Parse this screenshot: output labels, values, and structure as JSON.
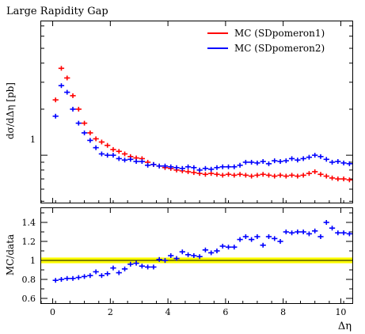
{
  "chart_data": [
    {
      "type": "scatter",
      "title": "Large Rapidity Gap",
      "ylabel": "dσ/dΔη [pb]",
      "xlabel": "",
      "log_y": true,
      "xlim": [
        -0.4,
        10.4
      ],
      "ylim": [
        0.49,
        7.5
      ],
      "ytick_labels": [
        "1"
      ],
      "ytick_values": [
        1
      ],
      "legend_position": "top-right",
      "x": [
        0.1,
        0.3,
        0.5,
        0.7,
        0.9,
        1.1,
        1.3,
        1.5,
        1.7,
        1.9,
        2.1,
        2.3,
        2.5,
        2.7,
        2.9,
        3.1,
        3.3,
        3.5,
        3.7,
        3.9,
        4.1,
        4.3,
        4.5,
        4.7,
        4.9,
        5.1,
        5.3,
        5.5,
        5.7,
        5.9,
        6.1,
        6.3,
        6.5,
        6.7,
        6.9,
        7.1,
        7.3,
        7.5,
        7.7,
        7.9,
        8.1,
        8.3,
        8.5,
        8.7,
        8.9,
        9.1,
        9.3,
        9.5,
        9.7,
        9.9,
        10.1,
        10.3
      ],
      "series": [
        {
          "name": "MC (SDpomeron1)",
          "color": "#ff0000",
          "values": [
            2.3,
            3.7,
            3.2,
            2.45,
            2.0,
            1.62,
            1.4,
            1.28,
            1.22,
            1.16,
            1.09,
            1.06,
            1.02,
            0.98,
            0.96,
            0.95,
            0.9,
            0.87,
            0.85,
            0.83,
            0.82,
            0.8,
            0.79,
            0.78,
            0.77,
            0.76,
            0.75,
            0.76,
            0.75,
            0.74,
            0.75,
            0.74,
            0.75,
            0.74,
            0.73,
            0.74,
            0.75,
            0.74,
            0.73,
            0.74,
            0.73,
            0.74,
            0.73,
            0.74,
            0.76,
            0.78,
            0.75,
            0.73,
            0.71,
            0.7,
            0.7,
            0.69
          ]
        },
        {
          "name": "MC (SDpomeron2)",
          "color": "#0000ff",
          "values": [
            1.8,
            2.85,
            2.58,
            2.0,
            1.62,
            1.4,
            1.25,
            1.12,
            1.02,
            1.0,
            1.0,
            0.95,
            0.93,
            0.94,
            0.91,
            0.91,
            0.86,
            0.87,
            0.85,
            0.85,
            0.84,
            0.83,
            0.82,
            0.84,
            0.83,
            0.8,
            0.82,
            0.81,
            0.83,
            0.84,
            0.84,
            0.84,
            0.86,
            0.9,
            0.9,
            0.89,
            0.91,
            0.88,
            0.92,
            0.91,
            0.92,
            0.95,
            0.93,
            0.95,
            0.97,
            1.0,
            0.98,
            0.94,
            0.9,
            0.91,
            0.89,
            0.88
          ]
        }
      ]
    },
    {
      "type": "scatter",
      "title": "",
      "ylabel": "MC/data",
      "xlabel": "Δη",
      "xlim": [
        -0.4,
        10.4
      ],
      "ylim": [
        0.55,
        1.55
      ],
      "ytick_labels": [
        "0.6",
        "0.8",
        "1",
        "1.2",
        "1.4"
      ],
      "ytick_values": [
        0.6,
        0.8,
        1.0,
        1.2,
        1.4
      ],
      "xtick_labels": [
        "0",
        "2",
        "4",
        "6",
        "8",
        "10"
      ],
      "xtick_values": [
        0,
        2,
        4,
        6,
        8,
        10
      ],
      "reference_line": 1.0,
      "band": [
        0.97,
        1.03
      ],
      "band_color": "#ffff00",
      "x": [
        0.1,
        0.3,
        0.5,
        0.7,
        0.9,
        1.1,
        1.3,
        1.5,
        1.7,
        1.9,
        2.1,
        2.3,
        2.5,
        2.7,
        2.9,
        3.1,
        3.3,
        3.5,
        3.7,
        3.9,
        4.1,
        4.3,
        4.5,
        4.7,
        4.9,
        5.1,
        5.3,
        5.5,
        5.7,
        5.9,
        6.1,
        6.3,
        6.5,
        6.7,
        6.9,
        7.1,
        7.3,
        7.5,
        7.7,
        7.9,
        8.1,
        8.3,
        8.5,
        8.7,
        8.9,
        9.1,
        9.3,
        9.5,
        9.7,
        9.9,
        10.1,
        10.3
      ],
      "series": [
        {
          "name": "MC (SDpomeron2)",
          "color": "#0000ff",
          "values": [
            0.79,
            0.8,
            0.81,
            0.81,
            0.82,
            0.83,
            0.84,
            0.88,
            0.84,
            0.86,
            0.92,
            0.87,
            0.91,
            0.96,
            0.97,
            0.94,
            0.93,
            0.93,
            1.01,
            1.0,
            1.05,
            1.02,
            1.09,
            1.06,
            1.05,
            1.04,
            1.11,
            1.08,
            1.1,
            1.15,
            1.14,
            1.14,
            1.22,
            1.25,
            1.22,
            1.25,
            1.16,
            1.25,
            1.23,
            1.2,
            1.3,
            1.29,
            1.3,
            1.3,
            1.28,
            1.31,
            1.25,
            1.4,
            1.34,
            1.29,
            1.29,
            1.28
          ]
        }
      ]
    }
  ],
  "legend": {
    "entries": [
      {
        "label": "MC (SDpomeron1)",
        "color": "#ff0000"
      },
      {
        "label": "MC (SDpomeron2)",
        "color": "#0000ff"
      }
    ]
  }
}
